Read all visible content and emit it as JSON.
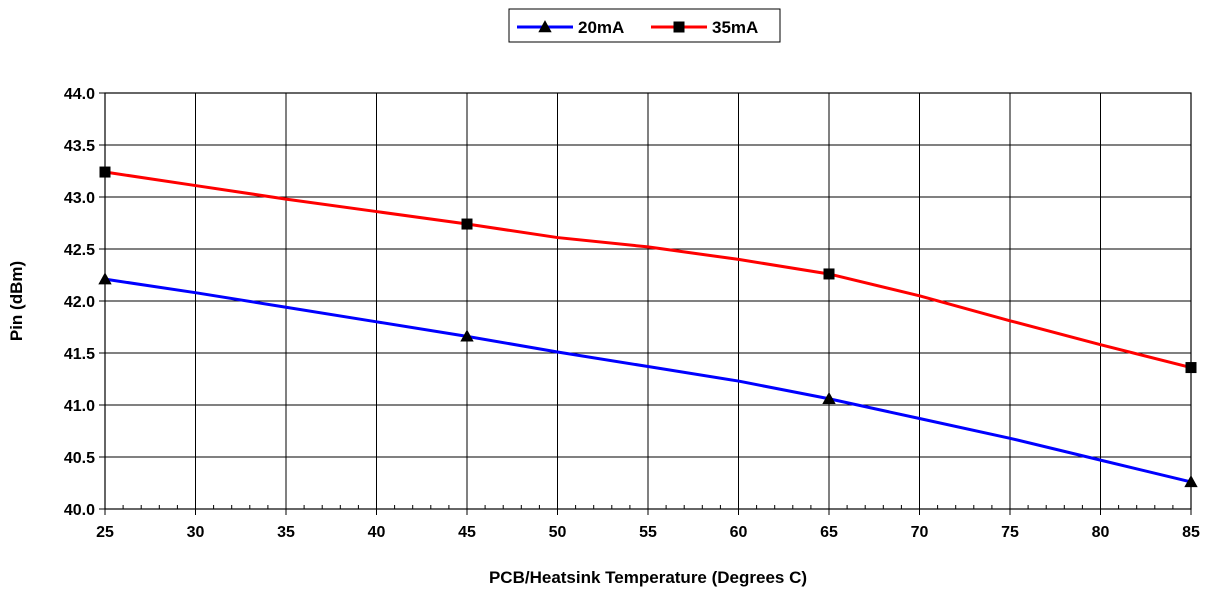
{
  "chart_data": {
    "type": "line",
    "title": "",
    "xlabel": "PCB/Heatsink Temperature (Degrees C)",
    "ylabel": "Pin (dBm)",
    "xlim": [
      25,
      85
    ],
    "ylim": [
      40.0,
      44.0
    ],
    "x_ticks": [
      "25",
      "30",
      "35",
      "40",
      "45",
      "50",
      "55",
      "60",
      "65",
      "70",
      "75",
      "80",
      "85"
    ],
    "y_ticks": [
      "40.0",
      "40.5",
      "41.0",
      "41.5",
      "42.0",
      "42.5",
      "43.0",
      "43.5",
      "44.0"
    ],
    "grid": true,
    "legend_position": "top-center",
    "series": [
      {
        "name": "20mA",
        "color": "#0000ff",
        "marker": "triangle",
        "x": [
          25,
          45,
          65,
          85
        ],
        "y": [
          42.21,
          41.66,
          41.06,
          40.26
        ],
        "curve_x": [
          25,
          30,
          35,
          40,
          45,
          50,
          55,
          60,
          65,
          70,
          75,
          80,
          85
        ],
        "curve_y": [
          42.21,
          42.08,
          41.94,
          41.8,
          41.66,
          41.51,
          41.37,
          41.23,
          41.06,
          40.87,
          40.68,
          40.47,
          40.26
        ]
      },
      {
        "name": "35mA",
        "color": "#ff0000",
        "marker": "square",
        "x": [
          25,
          45,
          65,
          85
        ],
        "y": [
          43.24,
          42.74,
          42.26,
          41.36
        ],
        "curve_x": [
          25,
          30,
          35,
          40,
          45,
          50,
          55,
          60,
          65,
          70,
          75,
          80,
          85
        ],
        "curve_y": [
          43.24,
          43.11,
          42.98,
          42.86,
          42.74,
          42.61,
          42.52,
          42.4,
          42.26,
          42.05,
          41.81,
          41.58,
          41.36
        ]
      }
    ]
  }
}
